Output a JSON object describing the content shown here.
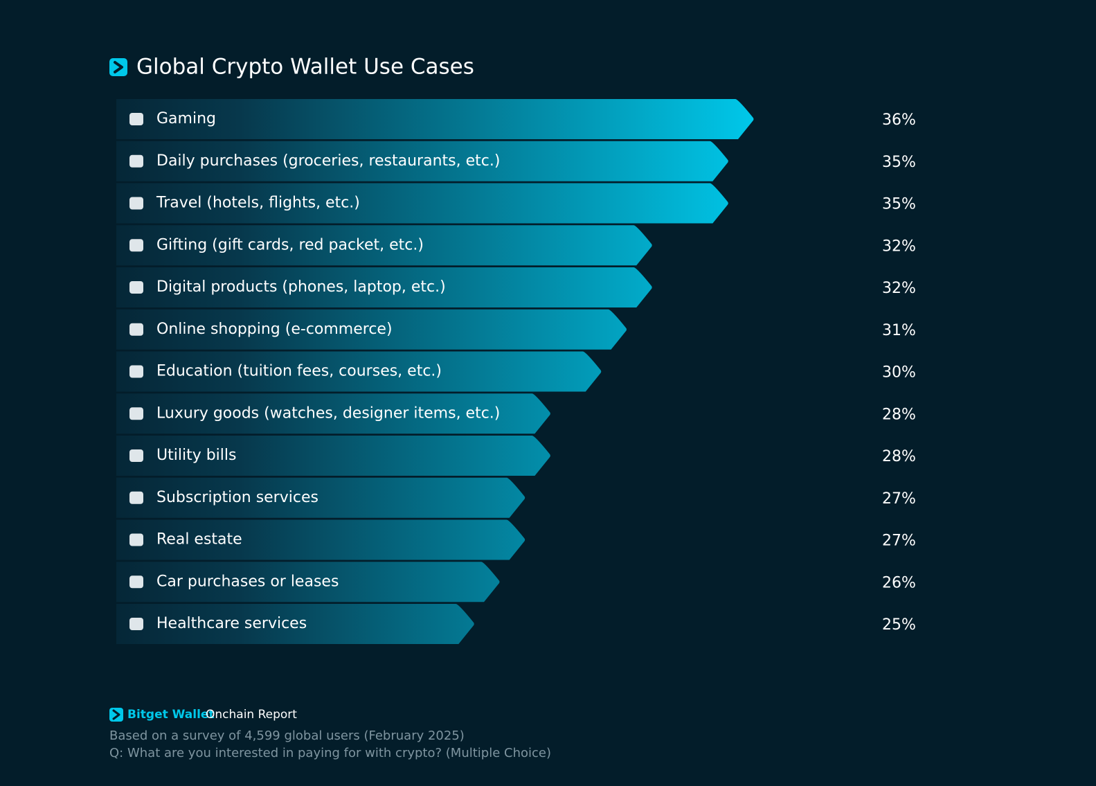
{
  "chart_data": {
    "type": "bar",
    "orientation": "horizontal",
    "title": "Global Crypto Wallet Use Cases",
    "categories": [
      "Gaming",
      "Daily purchases (groceries, restaurants, etc.)",
      "Travel (hotels, flights, etc.)",
      "Gifting (gift cards, red packet, etc.)",
      "Digital products (phones, laptop, etc.)",
      "Online shopping (e-commerce)",
      "Education (tuition fees, courses, etc.)",
      "Luxury goods (watches, designer items, etc.)",
      "Utility bills",
      "Subscription services",
      "Real estate",
      "Car purchases or leases",
      "Healthcare services"
    ],
    "values": [
      36,
      35,
      35,
      32,
      32,
      31,
      30,
      28,
      28,
      27,
      27,
      26,
      25
    ],
    "value_labels": [
      "36%",
      "35%",
      "35%",
      "32%",
      "32%",
      "31%",
      "30%",
      "28%",
      "28%",
      "27%",
      "27%",
      "26%",
      "25%"
    ],
    "color": "#00c8ea",
    "brand": "Bitget Wallet",
    "report": "Onchain Report",
    "notes": [
      "Based on a survey of 4,599 global users (February 2025)",
      "Q: What are you interested in paying for with crypto? (Multiple Choice)"
    ]
  }
}
